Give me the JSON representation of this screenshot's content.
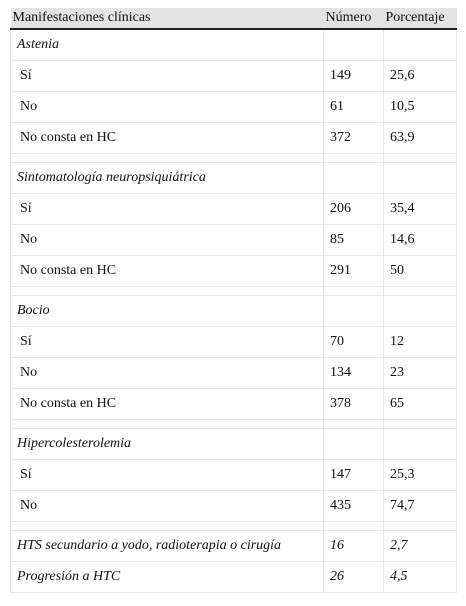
{
  "table": {
    "headers": [
      "Manifestaciones clínicas",
      "Número",
      "Porcentaje"
    ],
    "rows": [
      {
        "type": "category",
        "cells": [
          "Astenia",
          "",
          ""
        ]
      },
      {
        "type": "item",
        "cells": [
          "Sí",
          "149",
          "25,6"
        ]
      },
      {
        "type": "item",
        "cells": [
          "No",
          "61",
          "10,5"
        ]
      },
      {
        "type": "item",
        "cells": [
          "No consta en HC",
          "372",
          "63,9"
        ]
      },
      {
        "type": "spacer",
        "cells": [
          "",
          "",
          ""
        ]
      },
      {
        "type": "category",
        "cells": [
          "Sintomatología neuropsiquiátrica",
          "",
          ""
        ]
      },
      {
        "type": "item",
        "cells": [
          "Sí",
          "206",
          "35,4"
        ]
      },
      {
        "type": "item",
        "cells": [
          "No",
          "85",
          "14,6"
        ]
      },
      {
        "type": "item",
        "cells": [
          "No consta en HC",
          "291",
          "50"
        ]
      },
      {
        "type": "spacer",
        "cells": [
          "",
          "",
          ""
        ]
      },
      {
        "type": "category",
        "cells": [
          "Bocio",
          "",
          ""
        ]
      },
      {
        "type": "item",
        "cells": [
          "Sí",
          "70",
          "12"
        ]
      },
      {
        "type": "item",
        "cells": [
          "No",
          "134",
          "23"
        ]
      },
      {
        "type": "item",
        "cells": [
          "No consta en HC",
          "378",
          "65"
        ]
      },
      {
        "type": "spacer",
        "cells": [
          "",
          "",
          ""
        ]
      },
      {
        "type": "category",
        "cells": [
          "Hipercolesterolemia",
          "",
          ""
        ]
      },
      {
        "type": "item",
        "cells": [
          "Sí",
          "147",
          "25,3"
        ]
      },
      {
        "type": "item",
        "cells": [
          "No",
          "435",
          "74,7"
        ]
      },
      {
        "type": "spacer",
        "cells": [
          "",
          "",
          ""
        ]
      },
      {
        "type": "category",
        "cells": [
          "HTS secundario a yodo, radioterapia o cirugía",
          "16",
          "2,7"
        ]
      },
      {
        "type": "category",
        "cells": [
          "Progresión a HTC",
          "26",
          "4,5"
        ]
      }
    ]
  }
}
